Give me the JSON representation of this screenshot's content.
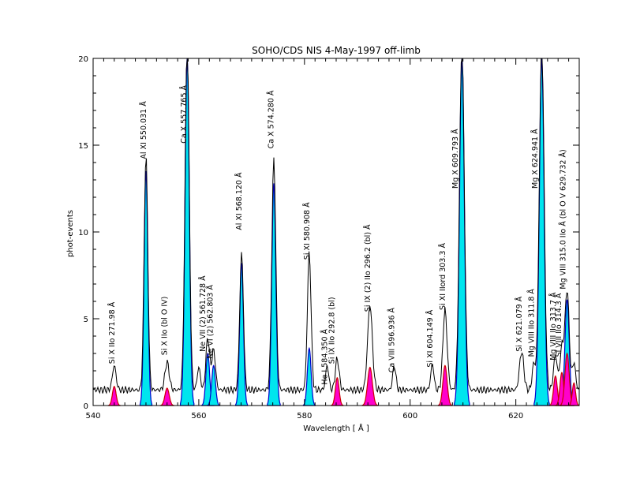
{
  "chart_data": {
    "type": "line",
    "title": "SOHO/CDS NIS   4-May-1997 off-limb",
    "xlabel": "Wavelength [ Å ]",
    "ylabel": "phot-events",
    "xlim": [
      540,
      632
    ],
    "ylim": [
      0,
      20
    ],
    "xticks": [
      540,
      560,
      580,
      600,
      620
    ],
    "yticks": [
      0,
      5,
      10,
      15,
      20
    ],
    "minor_xstep": 2,
    "minor_ystep": 1,
    "grid": false,
    "legend": "none",
    "baseline": 0.9,
    "colors": {
      "observed": "#000000",
      "fit_outline": "#0000cc",
      "fill_strong": "#00e5ee",
      "fill_weak": "#ff00cc",
      "fill_weak_outline": "#cc0000"
    },
    "series": [
      {
        "role": "observed",
        "peaks": [
          {
            "x": 544.0,
            "y": 1.4,
            "w": 0.35
          },
          {
            "x": 550.0,
            "y": 13.5,
            "w": 0.35
          },
          {
            "x": 554.0,
            "y": 1.6,
            "w": 0.4
          },
          {
            "x": 557.8,
            "y": 20,
            "w": 0.4
          },
          {
            "x": 560.0,
            "y": 1.3,
            "w": 0.3
          },
          {
            "x": 561.7,
            "y": 3.0,
            "w": 0.35
          },
          {
            "x": 562.8,
            "y": 2.3,
            "w": 0.35
          },
          {
            "x": 568.1,
            "y": 7.9,
            "w": 0.35
          },
          {
            "x": 574.2,
            "y": 13.3,
            "w": 0.38
          },
          {
            "x": 580.9,
            "y": 7.9,
            "w": 0.35
          },
          {
            "x": 584.3,
            "y": 1.4,
            "w": 0.3
          },
          {
            "x": 586.2,
            "y": 1.8,
            "w": 0.35
          },
          {
            "x": 592.4,
            "y": 4.9,
            "w": 0.45
          },
          {
            "x": 597.0,
            "y": 1.4,
            "w": 0.3
          },
          {
            "x": 604.2,
            "y": 1.5,
            "w": 0.3
          },
          {
            "x": 606.6,
            "y": 4.6,
            "w": 0.4
          },
          {
            "x": 609.8,
            "y": 20,
            "w": 0.45
          },
          {
            "x": 621.1,
            "y": 2.2,
            "w": 0.4
          },
          {
            "x": 623.4,
            "y": 1.5,
            "w": 0.3
          },
          {
            "x": 624.9,
            "y": 20,
            "w": 0.45
          },
          {
            "x": 627.5,
            "y": 2.0,
            "w": 0.35
          },
          {
            "x": 628.7,
            "y": 2.4,
            "w": 0.35
          },
          {
            "x": 629.7,
            "y": 5.8,
            "w": 0.4
          },
          {
            "x": 631.0,
            "y": 1.6,
            "w": 0.3
          }
        ]
      },
      {
        "role": "fit_strong",
        "peaks": [
          {
            "x": 550.0,
            "y": 13.5,
            "w": 0.35
          },
          {
            "x": 557.8,
            "y": 20,
            "w": 0.4
          },
          {
            "x": 561.7,
            "y": 3.0,
            "w": 0.35
          },
          {
            "x": 562.8,
            "y": 2.3,
            "w": 0.35
          },
          {
            "x": 568.1,
            "y": 8.2,
            "w": 0.35
          },
          {
            "x": 574.2,
            "y": 12.8,
            "w": 0.38
          },
          {
            "x": 580.9,
            "y": 3.3,
            "w": 0.35
          },
          {
            "x": 609.8,
            "y": 20,
            "w": 0.45
          },
          {
            "x": 624.9,
            "y": 20,
            "w": 0.45
          },
          {
            "x": 629.7,
            "y": 6.1,
            "w": 0.4
          }
        ]
      },
      {
        "role": "fit_weak",
        "peaks": [
          {
            "x": 544.0,
            "y": 1.1,
            "w": 0.35
          },
          {
            "x": 554.0,
            "y": 1.0,
            "w": 0.4
          },
          {
            "x": 586.2,
            "y": 1.6,
            "w": 0.35
          },
          {
            "x": 592.4,
            "y": 2.2,
            "w": 0.45
          },
          {
            "x": 606.6,
            "y": 2.3,
            "w": 0.4
          },
          {
            "x": 627.5,
            "y": 1.7,
            "w": 0.35
          },
          {
            "x": 628.7,
            "y": 1.9,
            "w": 0.35
          },
          {
            "x": 629.7,
            "y": 3.0,
            "w": 0.4
          },
          {
            "x": 631.0,
            "y": 1.3,
            "w": 0.3
          }
        ]
      }
    ],
    "annotations": [
      {
        "text": "Si X IIo   271.98 Å",
        "x": 544.0,
        "y": 2.4
      },
      {
        "text": "Al XI 550.031 Å",
        "x": 550.0,
        "y": 14.2
      },
      {
        "text": "Si X IIo (bl O IV)",
        "x": 554.0,
        "y": 2.9
      },
      {
        "text": "Ca X 557.765 Å",
        "x": 557.6,
        "y": 15.1
      },
      {
        "text": "Ne VII (2) 561.728 Å",
        "x": 561.2,
        "y": 3.1
      },
      {
        "text": "Ne VI (2) 562.803 Å",
        "x": 562.6,
        "y": 2.7
      },
      {
        "text": "Al XI     568.120 Å",
        "x": 568.1,
        "y": 10.1
      },
      {
        "text": "Ca X 574.280 Å",
        "x": 574.1,
        "y": 14.8
      },
      {
        "text": "Si XI   580.908 Å",
        "x": 580.9,
        "y": 8.4
      },
      {
        "text": "He I 584.350 Å",
        "x": 584.3,
        "y": 1.2
      },
      {
        "text": "Si IX IIo 292.8 (bl)",
        "x": 585.6,
        "y": 2.4
      },
      {
        "text": "Si IX (2) IIo 296.2 (bl) Å",
        "x": 592.4,
        "y": 5.4
      },
      {
        "text": "Ca VIII 596.936 Å",
        "x": 597.0,
        "y": 1.9
      },
      {
        "text": "Si XI 604.149 Å",
        "x": 604.2,
        "y": 2.2
      },
      {
        "text": "Si XI   IIord 303.3 Å",
        "x": 606.6,
        "y": 5.5
      },
      {
        "text": "Mg  X  609.793 Å",
        "x": 609.0,
        "y": 12.5
      },
      {
        "text": "Si X 621.079 Å",
        "x": 621.1,
        "y": 3.1
      },
      {
        "text": "Mg VIII IIo 311.8 Å",
        "x": 623.4,
        "y": 2.8
      },
      {
        "text": "Mg  X  624.941 Å",
        "x": 624.1,
        "y": 12.5
      },
      {
        "text": "Mg VIII IIo 313.7 Å",
        "x": 627.5,
        "y": 2.6
      },
      {
        "text": "Si VIII IIo 314.3 Å",
        "x": 628.6,
        "y": 2.8
      },
      {
        "text": "Mg VIII 315.0 IIo  Å (bl O V 629.732 Å)",
        "x": 629.4,
        "y": 6.7
      }
    ]
  }
}
